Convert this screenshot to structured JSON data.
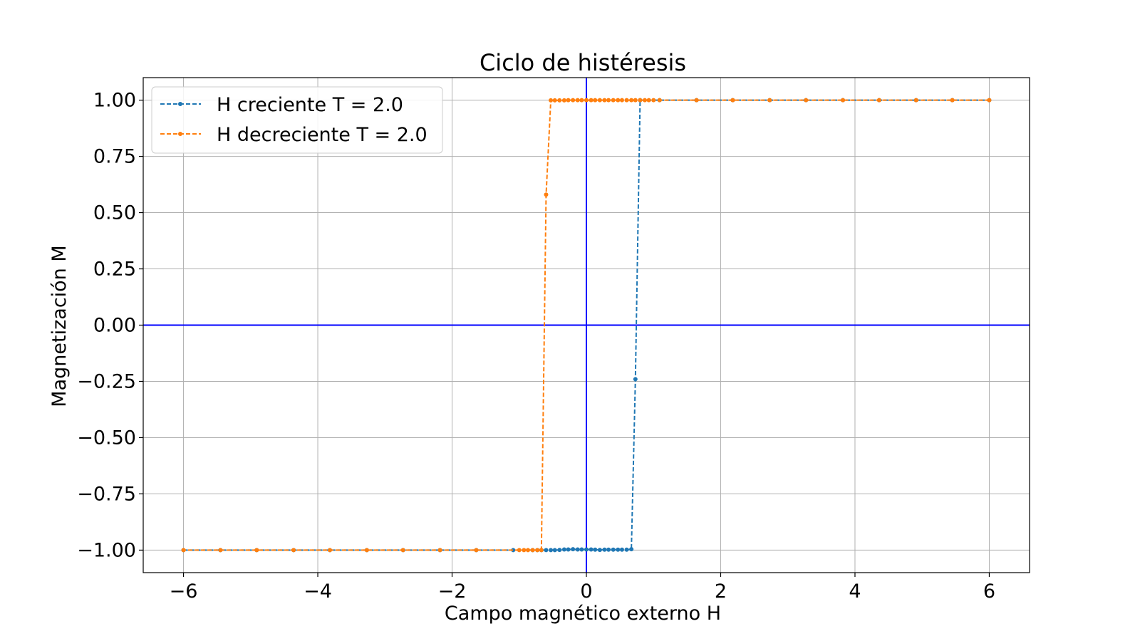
{
  "chart_data": {
    "type": "line",
    "title": "Ciclo de histéresis",
    "xlabel": "Campo magnético externo H",
    "ylabel": "Magnetización M",
    "xlim": [
      -6.6,
      6.6
    ],
    "ylim": [
      -1.1,
      1.1
    ],
    "xticks": [
      -6,
      -4,
      -2,
      0,
      2,
      4,
      6
    ],
    "xtick_labels": [
      "−6",
      "−4",
      "−2",
      "0",
      "2",
      "4",
      "6"
    ],
    "yticks": [
      1.0,
      0.75,
      0.5,
      0.25,
      0.0,
      -0.25,
      -0.5,
      -0.75,
      -1.0
    ],
    "ytick_labels": [
      "1.00",
      "0.75",
      "0.50",
      "0.25",
      "0.00",
      "−0.25",
      "−0.50",
      "−0.75",
      "−1.00"
    ],
    "grid": true,
    "legend_position": "top-left",
    "reference_lines": {
      "x": 0,
      "y": 0,
      "color": "#0000ff"
    },
    "series": [
      {
        "name": "H creciente T = 2.0",
        "color": "#1f77b4",
        "x": [
          -6.0,
          -5.45,
          -4.91,
          -4.36,
          -3.82,
          -3.27,
          -2.73,
          -2.18,
          -1.64,
          -1.09,
          -0.8,
          -0.73,
          -0.67,
          -0.6,
          -0.53,
          -0.47,
          -0.4,
          -0.33,
          -0.27,
          -0.2,
          -0.13,
          -0.07,
          0.0,
          0.07,
          0.13,
          0.2,
          0.27,
          0.33,
          0.4,
          0.47,
          0.53,
          0.6,
          0.67,
          0.73,
          0.8,
          1.09,
          1.64,
          2.18,
          2.73,
          3.27,
          3.82,
          4.36,
          4.91,
          5.45,
          6.0
        ],
        "y": [
          -1.0,
          -1.0,
          -1.0,
          -1.0,
          -1.0,
          -1.0,
          -1.0,
          -1.0,
          -1.0,
          -1.0,
          -1.0,
          -1.0,
          -1.0,
          -1.0,
          -1.0,
          -1.0,
          -0.999,
          -0.997,
          -0.997,
          -0.996,
          -0.997,
          -0.997,
          -0.997,
          -0.997,
          -0.998,
          -0.999,
          -0.998,
          -0.998,
          -0.998,
          -0.998,
          -0.998,
          -0.998,
          -0.996,
          -0.24,
          1.0,
          1.0,
          1.0,
          1.0,
          1.0,
          1.0,
          1.0,
          1.0,
          1.0,
          1.0,
          1.0
        ]
      },
      {
        "name": "H decreciente T = 2.0",
        "color": "#ff7f0e",
        "x": [
          6.0,
          5.45,
          4.91,
          4.36,
          3.82,
          3.27,
          2.73,
          2.18,
          1.64,
          1.09,
          1.0,
          0.93,
          0.87,
          0.8,
          0.73,
          0.67,
          0.6,
          0.53,
          0.47,
          0.4,
          0.33,
          0.27,
          0.2,
          0.13,
          0.07,
          0.0,
          -0.07,
          -0.13,
          -0.2,
          -0.27,
          -0.33,
          -0.4,
          -0.47,
          -0.53,
          -0.6,
          -0.67,
          -0.73,
          -0.8,
          -0.87,
          -0.93,
          -1.0,
          -1.64,
          -2.18,
          -2.73,
          -3.27,
          -3.82,
          -4.36,
          -4.91,
          -5.45,
          -6.0
        ],
        "y": [
          1.0,
          1.0,
          1.0,
          1.0,
          1.0,
          1.0,
          1.0,
          1.0,
          1.0,
          1.0,
          1.0,
          1.0,
          1.0,
          1.0,
          1.0,
          1.0,
          1.0,
          1.0,
          1.0,
          1.0,
          1.0,
          1.0,
          1.0,
          1.0,
          1.0,
          1.0,
          1.0,
          1.0,
          1.0,
          1.0,
          0.999,
          0.999,
          0.999,
          0.999,
          0.58,
          -1.0,
          -1.0,
          -1.0,
          -1.0,
          -1.0,
          -1.0,
          -1.0,
          -1.0,
          -1.0,
          -1.0,
          -1.0,
          -1.0,
          -1.0,
          -1.0,
          -1.0
        ]
      }
    ]
  }
}
